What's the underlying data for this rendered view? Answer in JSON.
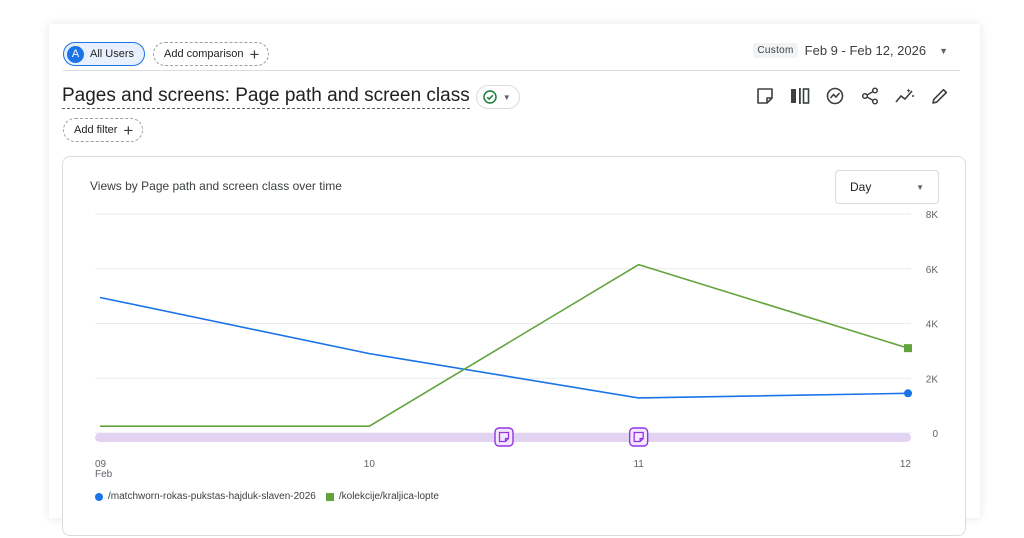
{
  "comparison": {
    "segment_initial": "A",
    "segment_label": "All Users",
    "add_comparison_label": "Add comparison",
    "plus_glyph": "+"
  },
  "date_range": {
    "badge": "Custom",
    "value": "Feb 9 - Feb 12, 2026",
    "caret": "▼"
  },
  "report": {
    "title": "Pages and screens: Page path and screen class",
    "status_icon": "check-circle-icon",
    "status_caret": "▼",
    "add_filter_label": "Add filter",
    "toolbar_icons": [
      "note-icon",
      "compare-columns-icon",
      "insights-icon",
      "share-icon",
      "trend-icon",
      "edit-pencil-icon"
    ]
  },
  "granularity": {
    "selected": "Day",
    "caret": "▼"
  },
  "colors": {
    "series_blue": "#1a73e8",
    "series_green": "#63a33d",
    "annotation_band": "#e3d3f3",
    "annotation_icon": "#9334e6"
  },
  "chart_data": {
    "type": "line",
    "title": "Views by Page path and screen class over time",
    "x": [
      "09",
      "10",
      "11",
      "12"
    ],
    "x_sublabels": [
      "Feb",
      "",
      "",
      ""
    ],
    "y_ticks": [
      "0",
      "2K",
      "4K",
      "6K",
      "8K"
    ],
    "y_tick_values": [
      0,
      2000,
      4000,
      6000,
      8000
    ],
    "ylim": [
      0,
      8000
    ],
    "grid": true,
    "y_axis_position": "right",
    "legend_position": "bottom-left",
    "series": [
      {
        "name": "/matchworn-rokas-pukstas-hajduk-slaven-2026",
        "values": [
          4950,
          2900,
          1280,
          1450
        ],
        "marker": "circle",
        "color": "#1a73e8"
      },
      {
        "name": "/kolekcije/kraljica-lopte",
        "values": [
          250,
          250,
          6150,
          3100
        ],
        "marker": "square",
        "color": "#63a33d"
      }
    ],
    "annotations": [
      {
        "x_between": [
          "10",
          "11"
        ],
        "position": 0.5,
        "icon": "note-icon"
      },
      {
        "x_at": "11",
        "icon": "note-icon"
      }
    ]
  }
}
